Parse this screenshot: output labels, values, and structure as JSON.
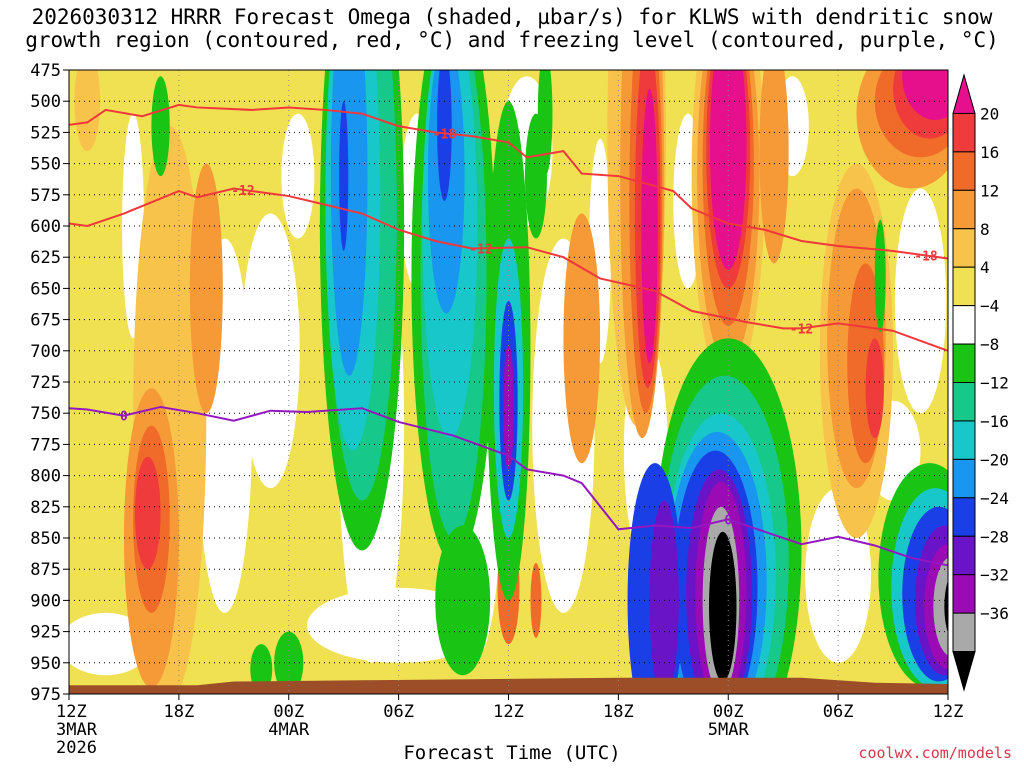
{
  "title_line1": "2026030312 HRRR Forecast Omega (shaded, µbar/s) for KLWS with dendritic snow",
  "title_line2": "growth region (contoured, red, °C) and freezing level (contoured, purple, °C)",
  "credit": "coolwx.com/models",
  "chart_data": {
    "type": "heatmap",
    "title": "2026030312 HRRR Forecast Omega (shaded, µbar/s) for KLWS with dendritic snow growth region (contoured, red, °C) and freezing level (contoured, purple, °C)",
    "xlabel": "Forecast Time (UTC)",
    "ylabel": "",
    "grid": true,
    "y_axis": {
      "label_values": [
        475,
        500,
        525,
        550,
        575,
        600,
        625,
        650,
        675,
        700,
        725,
        750,
        775,
        800,
        825,
        850,
        875,
        900,
        925,
        950,
        975
      ],
      "range": [
        975,
        475
      ],
      "direction": "pressure decreasing upward"
    },
    "x_axis": {
      "range_hours": [
        0,
        48
      ],
      "ticks": [
        {
          "hour": 0,
          "label": "12Z",
          "sub1": "3MAR",
          "sub2": "2026"
        },
        {
          "hour": 6,
          "label": "18Z",
          "sub1": "",
          "sub2": ""
        },
        {
          "hour": 12,
          "label": "00Z",
          "sub1": "4MAR",
          "sub2": ""
        },
        {
          "hour": 18,
          "label": "06Z",
          "sub1": "",
          "sub2": ""
        },
        {
          "hour": 24,
          "label": "12Z",
          "sub1": "",
          "sub2": ""
        },
        {
          "hour": 30,
          "label": "18Z",
          "sub1": "",
          "sub2": ""
        },
        {
          "hour": 36,
          "label": "00Z",
          "sub1": "5MAR",
          "sub2": ""
        },
        {
          "hour": 42,
          "label": "06Z",
          "sub1": "",
          "sub2": ""
        },
        {
          "hour": 48,
          "label": "12Z",
          "sub1": "",
          "sub2": ""
        }
      ]
    },
    "colorbar": {
      "labels": [
        "20",
        "16",
        "12",
        "8",
        "4",
        "−4",
        "−8",
        "−12",
        "−16",
        "−20",
        "−24",
        "−28",
        "−32",
        "−36"
      ],
      "colors": [
        "#e60f8c",
        "#ef3b3b",
        "#f06a2a",
        "#f59a37",
        "#f8c34a",
        "#f0e152",
        "#ffffff",
        "#19c414",
        "#16c98a",
        "#18c7c9",
        "#1996ef",
        "#1a3fe6",
        "#6a14c7",
        "#9a0ab5",
        "#a9a9a9",
        "#000000"
      ]
    },
    "series": [
      {
        "name": "-12",
        "color": "#f0383c",
        "points": [
          [
            0,
            598
          ],
          [
            1,
            600
          ],
          [
            3,
            590
          ],
          [
            5,
            578
          ],
          [
            6,
            572
          ],
          [
            7,
            577
          ],
          [
            9,
            570
          ],
          [
            12,
            576
          ],
          [
            14,
            583
          ],
          [
            16,
            590
          ],
          [
            18,
            603
          ],
          [
            20,
            612
          ],
          [
            22,
            618
          ],
          [
            25,
            617
          ],
          [
            27,
            625
          ],
          [
            29,
            642
          ],
          [
            32,
            652
          ],
          [
            34,
            668
          ],
          [
            37,
            677
          ],
          [
            39,
            682
          ],
          [
            40,
            682
          ],
          [
            42,
            678
          ],
          [
            45,
            684
          ],
          [
            48,
            700
          ]
        ],
        "labels_at_hours": [
          9.5,
          22.5,
          40
        ]
      },
      {
        "name": "-18",
        "color": "#f0383c",
        "points": [
          [
            0,
            519
          ],
          [
            1,
            517
          ],
          [
            2,
            507
          ],
          [
            4,
            512
          ],
          [
            6,
            503
          ],
          [
            7,
            505
          ],
          [
            10,
            507
          ],
          [
            12,
            505
          ],
          [
            14,
            507
          ],
          [
            16,
            510
          ],
          [
            18,
            520
          ],
          [
            20,
            525
          ],
          [
            22,
            528
          ],
          [
            24,
            533
          ],
          [
            25,
            545
          ],
          [
            27,
            540
          ],
          [
            28,
            558
          ],
          [
            30,
            560
          ],
          [
            33,
            572
          ],
          [
            34,
            586
          ],
          [
            36,
            598
          ],
          [
            38,
            603
          ],
          [
            40,
            612
          ],
          [
            42,
            616
          ],
          [
            45,
            620
          ],
          [
            48,
            626
          ]
        ],
        "labels_at_hours": [
          20.5,
          46.8
        ]
      },
      {
        "name": "0",
        "color": "#9417c0",
        "points": [
          [
            0,
            746
          ],
          [
            1,
            747
          ],
          [
            3,
            752
          ],
          [
            5,
            745
          ],
          [
            7,
            750
          ],
          [
            9,
            756
          ],
          [
            11,
            748
          ],
          [
            13,
            749
          ],
          [
            16,
            746
          ],
          [
            18,
            757
          ],
          [
            21,
            768
          ],
          [
            24,
            784
          ],
          [
            25,
            795
          ],
          [
            27,
            800
          ],
          [
            28,
            806
          ],
          [
            30,
            843
          ],
          [
            32,
            840
          ],
          [
            34,
            842
          ],
          [
            36,
            835
          ],
          [
            38,
            845
          ],
          [
            40,
            855
          ],
          [
            42,
            849
          ],
          [
            44,
            856
          ],
          [
            46,
            866
          ],
          [
            48,
            872
          ]
        ],
        "labels_at_hours": [
          3,
          36
        ]
      }
    ],
    "colors": {
      "positive_shading_low": "#f0e152",
      "positive_shading_high": "#e60f8c",
      "negative_shading_low": "#19c414",
      "negative_shading_high": "#000000",
      "terrain": "#9c4e28",
      "snow_growth_contour": "#f0383c",
      "freezing_level_contour": "#9417c0"
    }
  }
}
